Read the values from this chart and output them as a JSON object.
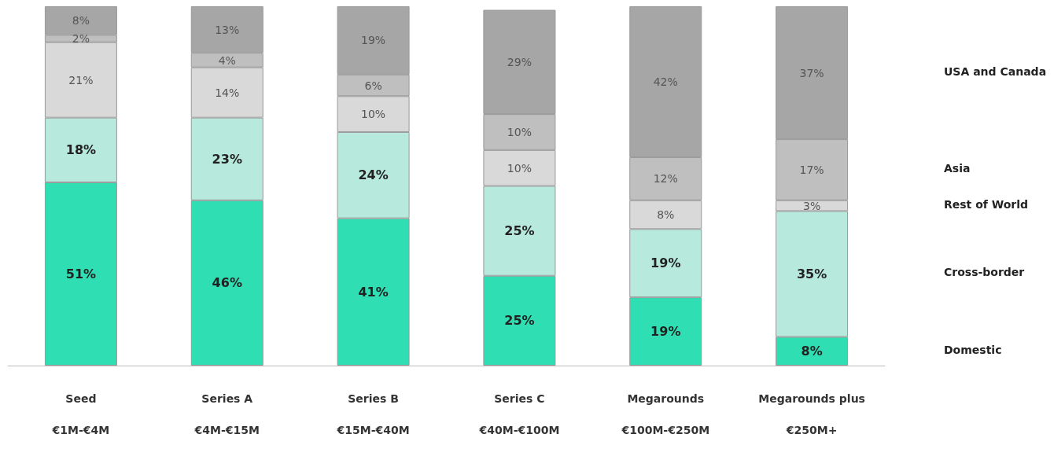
{
  "chart_data": {
    "type": "bar",
    "stacked": true,
    "legend": "right",
    "categories": [
      "Seed\n€1M-€4M",
      "Series A\n€4M-€15M",
      "Series B\n€15M-€40M",
      "Series C\n€40M-€100M",
      "Megarounds\n€100M-€250M",
      "Megarounds plus\n€250M+"
    ],
    "series": [
      {
        "name": "Domestic",
        "color": "#2fdfb3",
        "values": [
          51,
          46,
          41,
          25,
          19,
          8
        ],
        "value_labels": [
          "51%",
          "46%",
          "41%",
          "25%",
          "19%",
          "8%"
        ]
      },
      {
        "name": "Cross-border",
        "color": "#b7e9dc",
        "values": [
          18,
          23,
          24,
          25,
          19,
          35
        ],
        "value_labels": [
          "18%",
          "23%",
          "24%",
          "25%",
          "19%",
          "35%"
        ]
      },
      {
        "name": "Rest of World",
        "color": "#d9d9d9",
        "values": [
          21,
          14,
          10,
          10,
          8,
          3
        ],
        "value_labels": [
          "21%",
          "14%",
          "10%",
          "10%",
          "8%",
          "3%"
        ]
      },
      {
        "name": "Asia",
        "color": "#bfbfbf",
        "values": [
          2,
          4,
          6,
          10,
          12,
          17
        ],
        "value_labels": [
          "2%",
          "4%",
          "6%",
          "10%",
          "12%",
          "17%"
        ]
      },
      {
        "name": "USA and Canada",
        "color": "#a6a6a6",
        "values": [
          8,
          13,
          19,
          29,
          42,
          37
        ],
        "value_labels": [
          "8%",
          "13%",
          "19%",
          "29%",
          "42%",
          "37%"
        ]
      }
    ]
  }
}
